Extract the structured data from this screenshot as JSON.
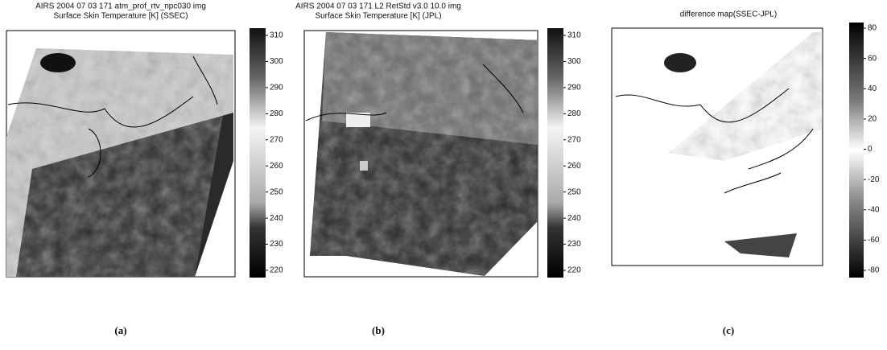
{
  "panels": [
    {
      "title_line1": "AIRS 2004 07 03 171 atm_prof_rtv_npc030 img",
      "title_line2": "Surface Skin Temperature [K] (SSEC)",
      "colorbar_ticks": [
        310,
        300,
        290,
        280,
        270,
        260,
        250,
        240,
        230,
        220
      ],
      "caption": "(a)"
    },
    {
      "title_line1": "AIRS 2004 07 03 171 L2 RetStd v3.0 10.0 img",
      "title_line2": "Surface Skin Temperature [K] (JPL)",
      "colorbar_ticks": [
        310,
        300,
        290,
        280,
        270,
        260,
        250,
        240,
        230,
        220
      ],
      "caption": "(b)"
    },
    {
      "title_line1": "difference map(SSEC-JPL)",
      "colorbar_ticks": [
        80,
        60,
        40,
        20,
        0,
        -20,
        -40,
        -60,
        -80
      ],
      "caption": "(c)"
    }
  ]
}
